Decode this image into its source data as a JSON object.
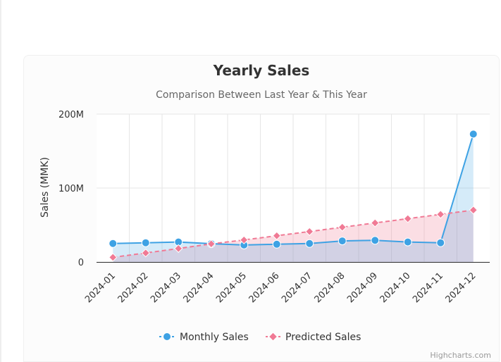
{
  "chart_data": {
    "type": "area",
    "title": "Yearly Sales",
    "subtitle": "Comparison Between Last Year & This Year",
    "ylabel": "Sales (MMK)",
    "xlabel": "",
    "ylim": [
      0,
      200000000
    ],
    "yticks": [
      {
        "value": 0,
        "label": "0"
      },
      {
        "value": 100000000,
        "label": "100M"
      },
      {
        "value": 200000000,
        "label": "200M"
      }
    ],
    "categories": [
      "2024-01",
      "2024-02",
      "2024-03",
      "2024-04",
      "2024-05",
      "2024-06",
      "2024-07",
      "2024-08",
      "2024-09",
      "2024-10",
      "2024-11",
      "2024-12"
    ],
    "series": [
      {
        "name": "Monthly Sales",
        "color": "#3ea2e4",
        "marker": "circle",
        "values": [
          25000000,
          26000000,
          27000000,
          24800000,
          23000000,
          24000000,
          25000000,
          28500000,
          29300000,
          27000000,
          26000000,
          173000000
        ]
      },
      {
        "name": "Predicted Sales",
        "color": "#f07a95",
        "marker": "diamond",
        "values": [
          6300000,
          12200000,
          18200000,
          24500000,
          29800000,
          35500000,
          41200000,
          47000000,
          52800000,
          58600000,
          64400000,
          70200000
        ]
      }
    ],
    "grid": true,
    "legend": "bottom-center"
  },
  "credits": "Highcharts.com"
}
